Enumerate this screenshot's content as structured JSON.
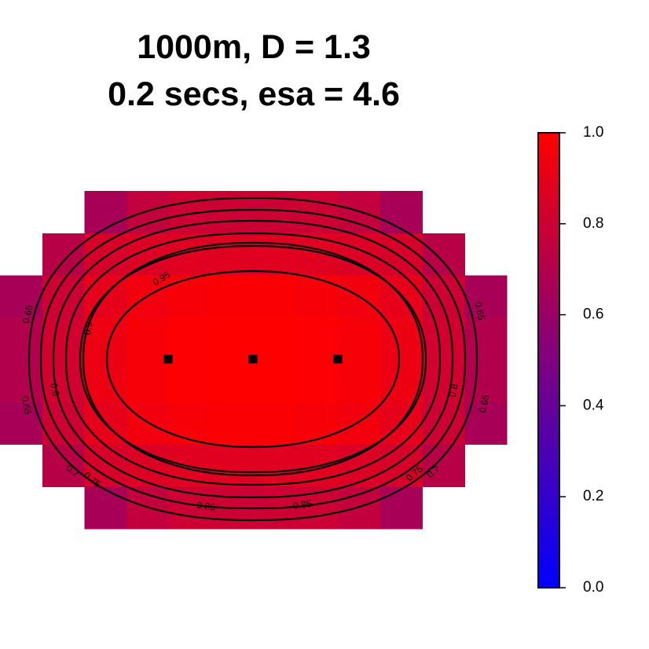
{
  "title": {
    "line1": "1000m, D = 1.3",
    "line2": "0.2 secs, esa = 4.6"
  },
  "chart_data": {
    "type": "heatmap",
    "title": "1000m, D = 1.3 / 0.2 secs, esa = 4.6",
    "color_scale": {
      "low_color": "#0000FF",
      "high_color": "#FF0000",
      "range": [
        0.0,
        1.0
      ],
      "ticks": [
        {
          "value": 1.0,
          "label": "1.0"
        },
        {
          "value": 0.8,
          "label": "0.8"
        },
        {
          "value": 0.6,
          "label": "0.6"
        },
        {
          "value": 0.4,
          "label": "0.4"
        },
        {
          "value": 0.2,
          "label": "0.2"
        },
        {
          "value": 0.0,
          "label": "0.0"
        }
      ]
    },
    "grid": [
      [
        null,
        null,
        0.66,
        0.76,
        0.8,
        0.8,
        0.8,
        0.8,
        0.76,
        0.66,
        null,
        null
      ],
      [
        null,
        0.72,
        0.84,
        0.86,
        0.88,
        0.88,
        0.88,
        0.88,
        0.86,
        0.84,
        0.72,
        null
      ],
      [
        0.66,
        0.8,
        0.9,
        0.95,
        0.97,
        0.98,
        0.98,
        0.97,
        0.95,
        0.9,
        0.8,
        0.66
      ],
      [
        0.7,
        0.82,
        0.93,
        0.97,
        0.99,
        1.0,
        1.0,
        0.99,
        0.97,
        0.93,
        0.82,
        0.7
      ],
      [
        0.7,
        0.82,
        0.93,
        0.97,
        0.99,
        1.0,
        1.0,
        0.99,
        0.97,
        0.93,
        0.82,
        0.7
      ],
      [
        0.66,
        0.8,
        0.9,
        0.95,
        0.97,
        0.98,
        0.98,
        0.97,
        0.95,
        0.9,
        0.8,
        0.66
      ],
      [
        null,
        0.72,
        0.84,
        0.86,
        0.88,
        0.88,
        0.88,
        0.88,
        0.86,
        0.84,
        0.72,
        null
      ],
      [
        null,
        null,
        0.66,
        0.76,
        0.8,
        0.8,
        0.8,
        0.8,
        0.76,
        0.66,
        null,
        null
      ]
    ],
    "contours": [
      {
        "level": 0.65,
        "labels": [
          "0.65",
          "0.65",
          "0.65",
          "0.65"
        ]
      },
      {
        "level": 0.7,
        "labels": [
          "0.7",
          "0.7"
        ]
      },
      {
        "level": 0.75,
        "labels": [
          "0.75",
          "0.75"
        ]
      },
      {
        "level": 0.8,
        "labels": [
          "0.8",
          "0.8"
        ]
      },
      {
        "level": 0.85,
        "labels": [
          "0.85",
          "0.85"
        ]
      },
      {
        "level": 0.9,
        "labels": [
          "0.9"
        ]
      },
      {
        "level": 0.95,
        "labels": [
          "0.95"
        ]
      }
    ],
    "detectors": [
      {
        "x": -1,
        "y": 0
      },
      {
        "x": 0,
        "y": 0
      },
      {
        "x": 1,
        "y": 0
      }
    ],
    "grid_on": false,
    "legend": "color bar, right"
  }
}
